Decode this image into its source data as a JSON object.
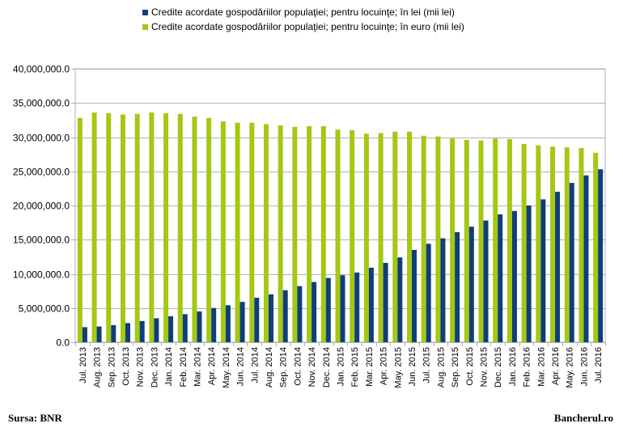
{
  "chart_data": {
    "type": "bar",
    "title": "",
    "xlabel": "",
    "ylabel": "",
    "ylim": [
      0,
      40000000
    ],
    "yticks": [
      "0.0",
      "5,000,000.0",
      "10,000,000.0",
      "15,000,000.0",
      "20,000,000.0",
      "25,000,000.0",
      "30,000,000.0",
      "35,000,000.0",
      "40,000,000.0"
    ],
    "ytick_values": [
      0,
      5000000,
      10000000,
      15000000,
      20000000,
      25000000,
      30000000,
      35000000,
      40000000
    ],
    "grid": true,
    "legend_position": "top",
    "categories": [
      "Jul. 2013",
      "Aug. 2013",
      "Sep. 2013",
      "Oct. 2013",
      "Nov. 2013",
      "Dec. 2013",
      "Jan. 2014",
      "Feb. 2014",
      "Mar. 2014",
      "Apr. 2014",
      "May. 2014",
      "Jun. 2014",
      "Jul. 2014",
      "Aug. 2014",
      "Sep. 2014",
      "Oct. 2014",
      "Nov. 2014",
      "Dec. 2014",
      "Jan. 2015",
      "Feb. 2015",
      "Mar. 2015",
      "Apr. 2015",
      "May. 2015",
      "Jun. 2015",
      "Jul. 2015",
      "Aug. 2015",
      "Sep. 2015",
      "Oct. 2015",
      "Nov. 2015",
      "Dec. 2015",
      "Jan. 2016",
      "Feb. 2016",
      "Mar. 2016",
      "Apr. 2016",
      "May. 2016",
      "Jun. 2016",
      "Jul. 2016"
    ],
    "series": [
      {
        "name": "Credite acordate gospodăriilor populaţiei; pentru locuinţe; în lei (mii lei)",
        "color": "#0f3e7a",
        "values": [
          2200000,
          2300000,
          2500000,
          2800000,
          3100000,
          3500000,
          3800000,
          4100000,
          4500000,
          5000000,
          5400000,
          5900000,
          6500000,
          7000000,
          7600000,
          8200000,
          8800000,
          9400000,
          9800000,
          10200000,
          10900000,
          11600000,
          12400000,
          13500000,
          14400000,
          15200000,
          16100000,
          16900000,
          17800000,
          18700000,
          19200000,
          20000000,
          20900000,
          22000000,
          23300000,
          24400000,
          25300000
        ]
      },
      {
        "name": "Credite acordate gospodăriilor populaţiei; pentru locuinţe; în euro (mii lei)",
        "color": "#a4c814",
        "values": [
          32800000,
          33600000,
          33500000,
          33300000,
          33400000,
          33600000,
          33500000,
          33400000,
          33000000,
          32800000,
          32300000,
          32100000,
          32100000,
          31900000,
          31700000,
          31500000,
          31600000,
          31600000,
          31100000,
          31000000,
          30500000,
          30600000,
          30800000,
          30800000,
          30200000,
          30100000,
          29800000,
          29600000,
          29500000,
          29800000,
          29700000,
          29000000,
          28800000,
          28600000,
          28500000,
          28400000,
          27700000
        ]
      }
    ]
  },
  "footer": {
    "source": "Sursa: BNR",
    "brand": "Bancherul.ro"
  }
}
